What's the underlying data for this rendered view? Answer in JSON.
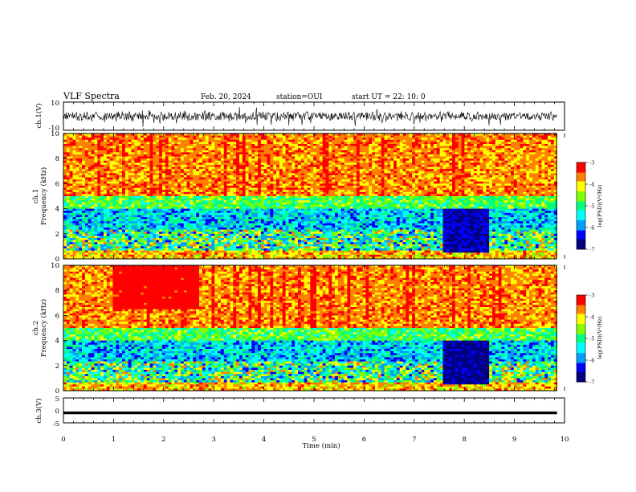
{
  "header": {
    "title": "VLF Spectra",
    "date": "Feb. 20, 2024",
    "station": "station=OUI",
    "start": "start  UT =   22: 10: 0"
  },
  "chart_data": [
    {
      "id": "ch1-waveform",
      "type": "line",
      "ylabel": "ch.1(V)",
      "ylim": [
        -10,
        10
      ],
      "yticks": [
        "10",
        "-10"
      ],
      "xlim": [
        0,
        10
      ],
      "note_values": "broadband noise waveform centred near 0 V, typical amplitude ±3 V with bursts to ±8 V"
    },
    {
      "id": "ch1-spectrogram",
      "type": "heatmap",
      "ylabel_top": "ch.1",
      "ylabel": "Frequency  (kHz)",
      "ylim": [
        0,
        10
      ],
      "yticks": [
        "0",
        "2",
        "4",
        "6",
        "8",
        "10"
      ],
      "xlim": [
        0,
        10
      ],
      "colorbar": {
        "label": "log(PSD)(V²/Hz)",
        "range": [
          -7,
          -3
        ],
        "ticks": [
          "-3",
          "-4",
          "-5",
          "-6",
          "-7"
        ]
      },
      "features": [
        {
          "band_khz": [
            4.5,
            10
          ],
          "level": -3.6,
          "desc": "high-frequency sferic noise"
        },
        {
          "band_khz": [
            0,
            4.5
          ],
          "level": -5.2,
          "desc": "lower-frequency mixed band"
        },
        {
          "time_min": [
            7.6,
            8.5
          ],
          "band_khz": [
            0,
            4
          ],
          "level": -6.6,
          "desc": "low-intensity window"
        }
      ]
    },
    {
      "id": "ch2-spectrogram",
      "type": "heatmap",
      "ylabel_top": "ch.2",
      "ylabel": "Frequency  (kHz)",
      "ylim": [
        0,
        10
      ],
      "yticks": [
        "0",
        "2",
        "4",
        "6",
        "8",
        "10"
      ],
      "xlim": [
        0,
        10
      ],
      "colorbar": {
        "label": "log(PSD)(V²/Hz)",
        "range": [
          -7,
          -3
        ],
        "ticks": [
          "-3",
          "-4",
          "-5",
          "-6",
          "-7"
        ]
      },
      "features": [
        {
          "band_khz": [
            4.5,
            10
          ],
          "level": -3.7,
          "desc": "high-frequency sferic noise"
        },
        {
          "time_min": [
            1.0,
            2.7
          ],
          "band_khz": [
            6.5,
            10
          ],
          "level": -3.2,
          "desc": "enhanced patch"
        },
        {
          "time_min": [
            7.6,
            8.5
          ],
          "band_khz": [
            0,
            4
          ],
          "level": -6.7,
          "desc": "low-intensity window"
        }
      ]
    },
    {
      "id": "ch3-waveform",
      "type": "line",
      "ylabel": "ch.3(V)",
      "ylim": [
        -5,
        5
      ],
      "yticks": [
        "5",
        "0",
        "-5"
      ],
      "xlim": [
        0,
        10
      ],
      "note_values": "nearly constant trace at about -1 V across the record"
    }
  ],
  "xaxis": {
    "label": "Time  (min)",
    "ticks": [
      "0",
      "1",
      "2",
      "3",
      "4",
      "5",
      "6",
      "7",
      "8",
      "9",
      "10"
    ],
    "range": [
      0,
      10
    ]
  },
  "colors": {
    "scale": [
      "#000080",
      "#0000ff",
      "#00a0ff",
      "#00ffff",
      "#00ff80",
      "#80ff00",
      "#ffff00",
      "#ff8000",
      "#ff0000"
    ],
    "ink": "#000000"
  }
}
